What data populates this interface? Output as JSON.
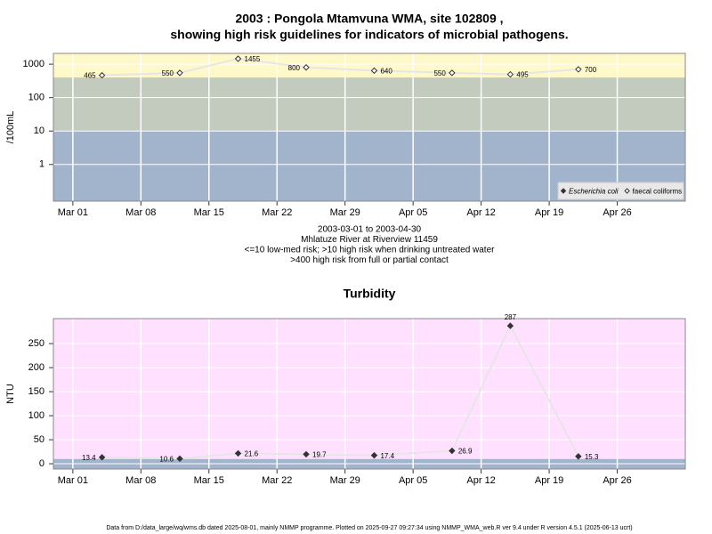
{
  "chart_data": [
    {
      "type": "line",
      "title": [
        "2003 : Pongola Mtamvuna WMA, site 102809 ,",
        "showing high risk guidelines for indicators of microbial pathogens."
      ],
      "y_label": "/100mL",
      "log_y": true,
      "x": [
        "Mar 04",
        "Mar 12",
        "Mar 18",
        "Mar 25",
        "Apr 01",
        "Apr 09",
        "Apr 15",
        "Apr 22"
      ],
      "series": [
        {
          "name": "Escherichia coli",
          "color": "#333333",
          "marker": "filled",
          "values": [
            null,
            null,
            null,
            null,
            null,
            null,
            null,
            null
          ]
        },
        {
          "name": "faecal coliforms",
          "color": "#333333",
          "marker": "open",
          "values": [
            465,
            550,
            1455,
            800,
            640,
            550,
            495,
            700
          ]
        }
      ],
      "line_color": "#e6e6e6",
      "xlim": [
        "Feb 27",
        "May 03"
      ],
      "xticks": [
        "Mar 01",
        "Mar 08",
        "Mar 15",
        "Mar 22",
        "Mar 29",
        "Apr 05",
        "Apr 12",
        "Apr 19",
        "Apr 26"
      ],
      "ylim": [
        0.08,
        2100
      ],
      "yticks": [
        1,
        10,
        100,
        1000
      ],
      "thresholds": [
        10,
        400
      ],
      "band_colors": [
        "#a2b4cc",
        "#c3cabe",
        "#fff8c8"
      ],
      "grid": true,
      "legend": "bottom-right",
      "notes": [
        "2003-03-01 to 2003-04-30",
        "Mhlatuze River at Riverview 11459",
        "<=10 low-med risk; >10 high risk when drinking untreated water",
        ">400 high risk from full or partial contact"
      ]
    },
    {
      "type": "line",
      "title": [
        "Turbidity"
      ],
      "y_label": "NTU",
      "log_y": false,
      "x": [
        "Mar 04",
        "Mar 12",
        "Mar 18",
        "Mar 25",
        "Apr 01",
        "Apr 09",
        "Apr 15",
        "Apr 22"
      ],
      "series": [
        {
          "name": "Turbidity",
          "color": "#333333",
          "marker": "filled",
          "values": [
            13.4,
            10.6,
            21.6,
            19.7,
            17.4,
            26.9,
            287,
            15.3
          ]
        }
      ],
      "line_color": "#e6e6e6",
      "xlim": [
        "Feb 27",
        "May 03"
      ],
      "xticks": [
        "Mar 01",
        "Mar 08",
        "Mar 15",
        "Mar 22",
        "Mar 29",
        "Apr 05",
        "Apr 12",
        "Apr 19",
        "Apr 26"
      ],
      "ylim": [
        -11,
        302
      ],
      "yticks": [
        0,
        50,
        100,
        150,
        200,
        250
      ],
      "thresholds": [
        10
      ],
      "band_colors": [
        "#a2b4cc",
        "#ffe0ff"
      ],
      "grid": true
    }
  ],
  "footer": "Data from D:/data_large/wq/wms.db dated 2025-08-01, mainly NMMP programme. Plotted on 2025-09-27 09:27:34 using NMMP_WMA_web.R ver 9.4 under R version 4.5.1 (2025-06-13 ucrt)"
}
